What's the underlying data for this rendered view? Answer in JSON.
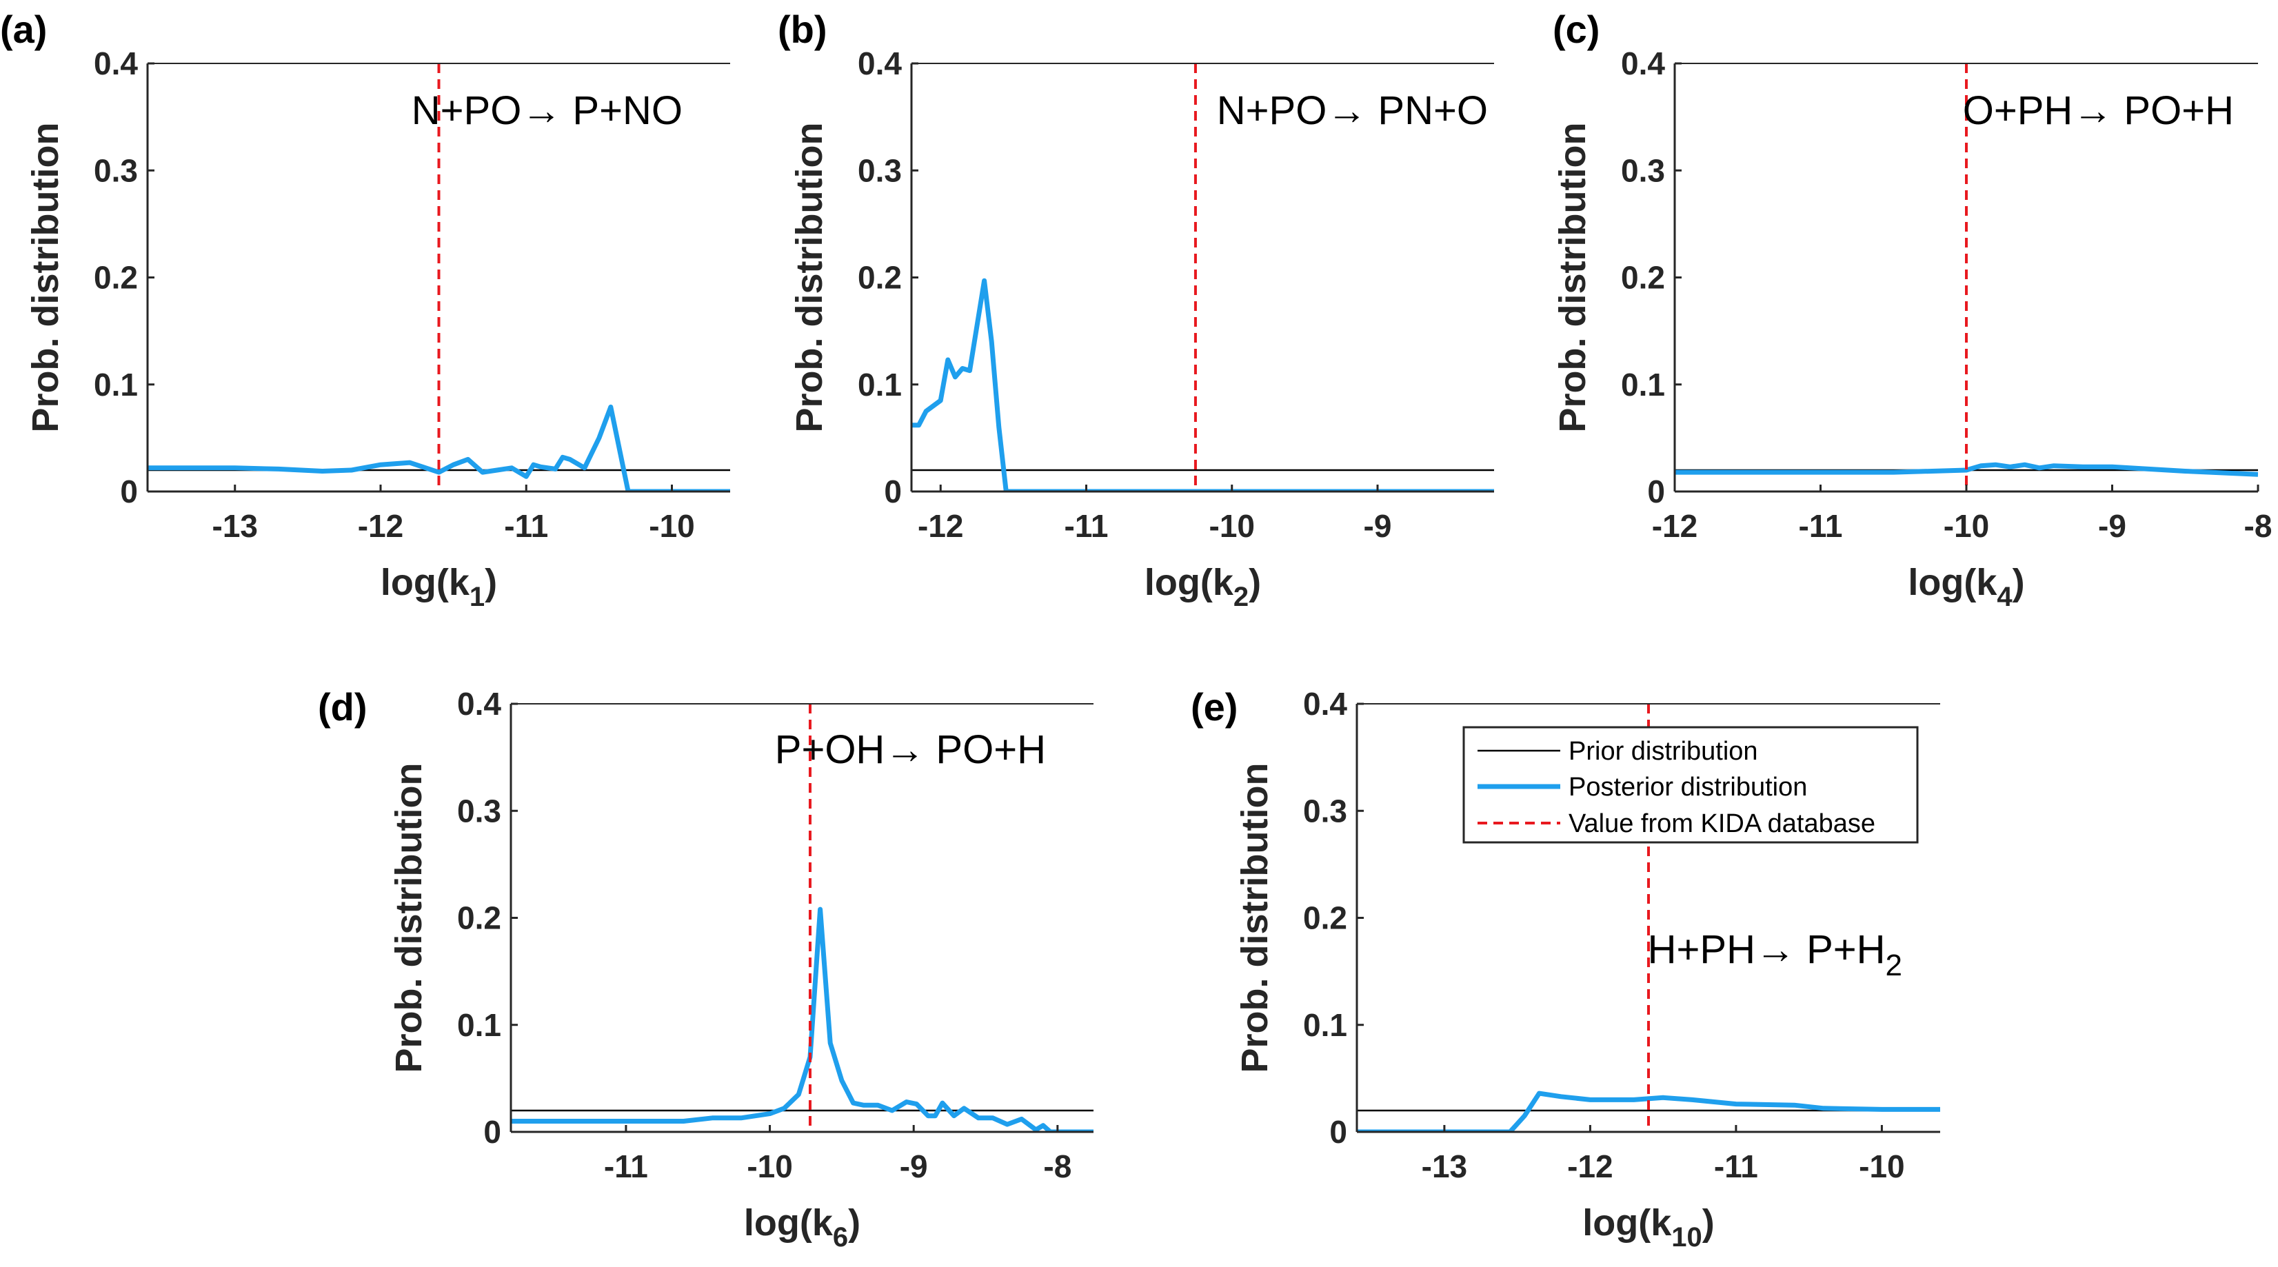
{
  "legend": {
    "prior": "Prior distribution",
    "posterior": "Posterior distribution",
    "kida": "Value from KIDA database"
  },
  "colors": {
    "prior": "#000000",
    "posterior": "#1f9fed",
    "kida": "#e8191f",
    "axis": "#262626"
  },
  "chart_data": [
    {
      "type": "line",
      "panel_label": "(a)",
      "title": "N+PO→ P+NO",
      "xlabel": "log(k",
      "xlabel_sub": "1",
      "xlabel_close": ")",
      "ylabel": "Prob. distribution",
      "xlim": [
        -13.6,
        -9.6
      ],
      "ylim": [
        0,
        0.4
      ],
      "xticks": [
        -13,
        -12,
        -11,
        -10
      ],
      "xtick_labels": [
        "-13",
        "-12",
        "-11",
        "-10"
      ],
      "yticks": [
        0,
        0.1,
        0.2,
        0.3,
        0.4
      ],
      "ytick_labels": [
        "0",
        "0.1",
        "0.2",
        "0.3",
        "0.4"
      ],
      "prior": 0.02,
      "kida_x": -11.6,
      "series": [
        {
          "name": "Posterior distribution",
          "x": [
            -13.6,
            -13.3,
            -13.0,
            -12.7,
            -12.4,
            -12.2,
            -12.0,
            -11.8,
            -11.6,
            -11.5,
            -11.4,
            -11.3,
            -11.2,
            -11.1,
            -11.0,
            -10.95,
            -10.9,
            -10.8,
            -10.75,
            -10.7,
            -10.6,
            -10.5,
            -10.42,
            -10.3,
            -10.0,
            -9.6
          ],
          "y": [
            0.022,
            0.022,
            0.022,
            0.021,
            0.019,
            0.02,
            0.025,
            0.027,
            0.018,
            0.025,
            0.03,
            0.018,
            0.02,
            0.022,
            0.014,
            0.025,
            0.023,
            0.021,
            0.032,
            0.03,
            0.022,
            0.05,
            0.079,
            0.0,
            0.0,
            0.0
          ]
        }
      ]
    },
    {
      "type": "line",
      "panel_label": "(b)",
      "title": "N+PO→ PN+O",
      "xlabel": "log(k",
      "xlabel_sub": "2",
      "xlabel_close": ")",
      "ylabel": "Prob. distribution",
      "xlim": [
        -12.2,
        -8.2
      ],
      "ylim": [
        0,
        0.4
      ],
      "xticks": [
        -12,
        -11,
        -10,
        -9
      ],
      "xtick_labels": [
        "-12",
        "-11",
        "-10",
        "-9"
      ],
      "yticks": [
        0,
        0.1,
        0.2,
        0.3,
        0.4
      ],
      "ytick_labels": [
        "0",
        "0.1",
        "0.2",
        "0.3",
        "0.4"
      ],
      "prior": 0.02,
      "kida_x": -10.25,
      "series": [
        {
          "name": "Posterior distribution",
          "x": [
            -12.2,
            -12.15,
            -12.1,
            -12.0,
            -11.95,
            -11.9,
            -11.85,
            -11.8,
            -11.7,
            -11.65,
            -11.6,
            -11.55,
            -11.5,
            -11.4,
            -10.0,
            -8.2
          ],
          "y": [
            0.062,
            0.062,
            0.075,
            0.085,
            0.123,
            0.107,
            0.115,
            0.113,
            0.197,
            0.14,
            0.06,
            0.0,
            0.0,
            0.0,
            0.0,
            0.0
          ]
        }
      ]
    },
    {
      "type": "line",
      "panel_label": "(c)",
      "title": "O+PH→ PO+H",
      "xlabel": "log(k",
      "xlabel_sub": "4",
      "xlabel_close": ")",
      "ylabel": "Prob. distribution",
      "xlim": [
        -12,
        -8
      ],
      "ylim": [
        0,
        0.4
      ],
      "xticks": [
        -12,
        -11,
        -10,
        -9,
        -8
      ],
      "xtick_labels": [
        "-12",
        "-11",
        "-10",
        "-9",
        "-8"
      ],
      "yticks": [
        0,
        0.1,
        0.2,
        0.3,
        0.4
      ],
      "ytick_labels": [
        "0",
        "0.1",
        "0.2",
        "0.3",
        "0.4"
      ],
      "prior": 0.02,
      "kida_x": -10.0,
      "series": [
        {
          "name": "Posterior distribution",
          "x": [
            -12.0,
            -11.5,
            -11.0,
            -10.5,
            -10.0,
            -9.9,
            -9.8,
            -9.7,
            -9.6,
            -9.5,
            -9.4,
            -9.2,
            -9.0,
            -8.5,
            -8.0
          ],
          "y": [
            0.018,
            0.018,
            0.018,
            0.018,
            0.02,
            0.024,
            0.025,
            0.023,
            0.025,
            0.022,
            0.024,
            0.023,
            0.023,
            0.019,
            0.016
          ]
        }
      ]
    },
    {
      "type": "line",
      "panel_label": "(d)",
      "title": "P+OH→ PO+H",
      "xlabel": "log(k",
      "xlabel_sub": "6",
      "xlabel_close": ")",
      "ylabel": "Prob. distribution",
      "xlim": [
        -11.8,
        -7.75
      ],
      "ylim": [
        0,
        0.4
      ],
      "xticks": [
        -11,
        -10,
        -9,
        -8
      ],
      "xtick_labels": [
        "-11",
        "-10",
        "-9",
        "-8"
      ],
      "yticks": [
        0,
        0.1,
        0.2,
        0.3,
        0.4
      ],
      "ytick_labels": [
        "0",
        "0.1",
        "0.2",
        "0.3",
        "0.4"
      ],
      "prior": 0.02,
      "kida_x": -9.72,
      "series": [
        {
          "name": "Posterior distribution",
          "x": [
            -11.8,
            -11.5,
            -11.0,
            -10.6,
            -10.4,
            -10.2,
            -10.0,
            -9.9,
            -9.8,
            -9.72,
            -9.65,
            -9.58,
            -9.5,
            -9.42,
            -9.35,
            -9.25,
            -9.15,
            -9.05,
            -8.98,
            -8.9,
            -8.85,
            -8.8,
            -8.72,
            -8.65,
            -8.55,
            -8.45,
            -8.35,
            -8.25,
            -8.15,
            -8.1,
            -8.05,
            -7.75
          ],
          "y": [
            0.01,
            0.01,
            0.01,
            0.01,
            0.013,
            0.013,
            0.017,
            0.022,
            0.035,
            0.07,
            0.208,
            0.083,
            0.048,
            0.027,
            0.025,
            0.025,
            0.02,
            0.028,
            0.026,
            0.015,
            0.015,
            0.027,
            0.015,
            0.022,
            0.013,
            0.013,
            0.007,
            0.012,
            0.002,
            0.006,
            0.0,
            0.0
          ]
        }
      ]
    },
    {
      "type": "line",
      "panel_label": "(e)",
      "title": "H+PH→ P+H",
      "title_sub": "2",
      "xlabel": "log(k",
      "xlabel_sub": "10",
      "xlabel_close": ")",
      "ylabel": "Prob. distribution",
      "xlim": [
        -13.6,
        -9.6
      ],
      "ylim": [
        0,
        0.4
      ],
      "xticks": [
        -13,
        -12,
        -11,
        -10
      ],
      "xtick_labels": [
        "-13",
        "-12",
        "-11",
        "-10"
      ],
      "yticks": [
        0,
        0.1,
        0.2,
        0.3,
        0.4
      ],
      "ytick_labels": [
        "0",
        "0.1",
        "0.2",
        "0.3",
        "0.4"
      ],
      "prior": 0.02,
      "kida_x": -11.6,
      "series": [
        {
          "name": "Posterior distribution",
          "x": [
            -13.6,
            -13.0,
            -12.55,
            -12.45,
            -12.35,
            -12.2,
            -12.0,
            -11.85,
            -11.7,
            -11.5,
            -11.3,
            -11.0,
            -10.6,
            -10.4,
            -10.0,
            -9.6
          ],
          "y": [
            0.0,
            0.0,
            0.0,
            0.015,
            0.036,
            0.033,
            0.03,
            0.03,
            0.03,
            0.032,
            0.03,
            0.026,
            0.025,
            0.022,
            0.021,
            0.021
          ]
        }
      ]
    }
  ]
}
